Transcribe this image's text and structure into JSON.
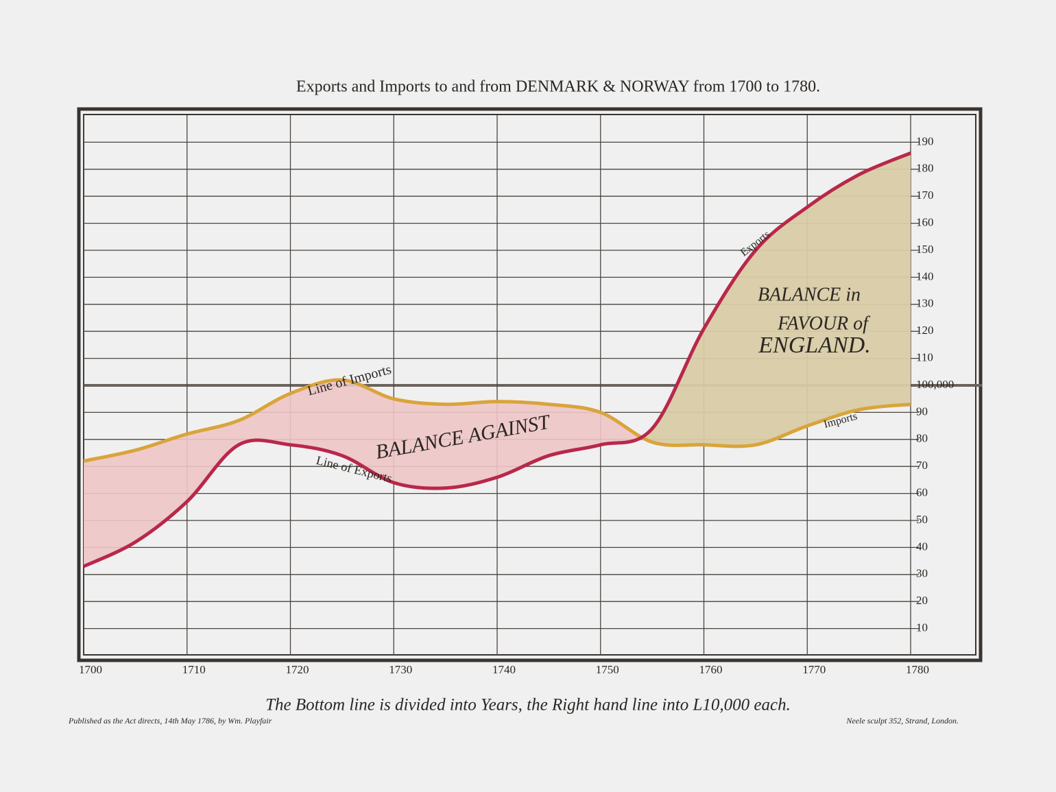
{
  "chart_data": {
    "type": "line",
    "title": "Exports and Imports to and from DENMARK & NORWAY from 1700 to 1780.",
    "x": [
      1700,
      1705,
      1710,
      1715,
      1720,
      1725,
      1730,
      1735,
      1740,
      1745,
      1750,
      1755,
      1760,
      1765,
      1770,
      1775,
      1780
    ],
    "series": [
      {
        "name": "Line of Imports",
        "color": "#d9a43a",
        "values": [
          72,
          76,
          82,
          87,
          97,
          102,
          95,
          93,
          94,
          93,
          90,
          79,
          78,
          78,
          85,
          91,
          93
        ]
      },
      {
        "name": "Line of Exports",
        "color": "#b8284a",
        "values": [
          33,
          42,
          57,
          78,
          78,
          74,
          64,
          62,
          66,
          74,
          78,
          84,
          121,
          150,
          166,
          178,
          186
        ]
      }
    ],
    "xlim": [
      1700,
      1780
    ],
    "xticks": [
      1700,
      1710,
      1720,
      1730,
      1740,
      1750,
      1760,
      1770,
      1780
    ],
    "ylim": [
      0,
      200
    ],
    "yticks": [
      10,
      20,
      30,
      40,
      50,
      60,
      70,
      80,
      90,
      {
        "value": 100,
        "label": "100,000"
      },
      110,
      120,
      130,
      140,
      150,
      160,
      170,
      180,
      190
    ],
    "grid": true,
    "annotations": [
      "BALANCE AGAINST",
      "BALANCE in",
      "FAVOUR of",
      "ENGLAND.",
      "Exports",
      "Imports"
    ],
    "x_label": "The Bottom line is divided into Years, the Right hand line into L10,000 each.",
    "footer_left": "Published as the Act directs, 14th May 1786, by Wm. Playfair",
    "footer_right": "Neele sculpt 352, Strand, London."
  }
}
